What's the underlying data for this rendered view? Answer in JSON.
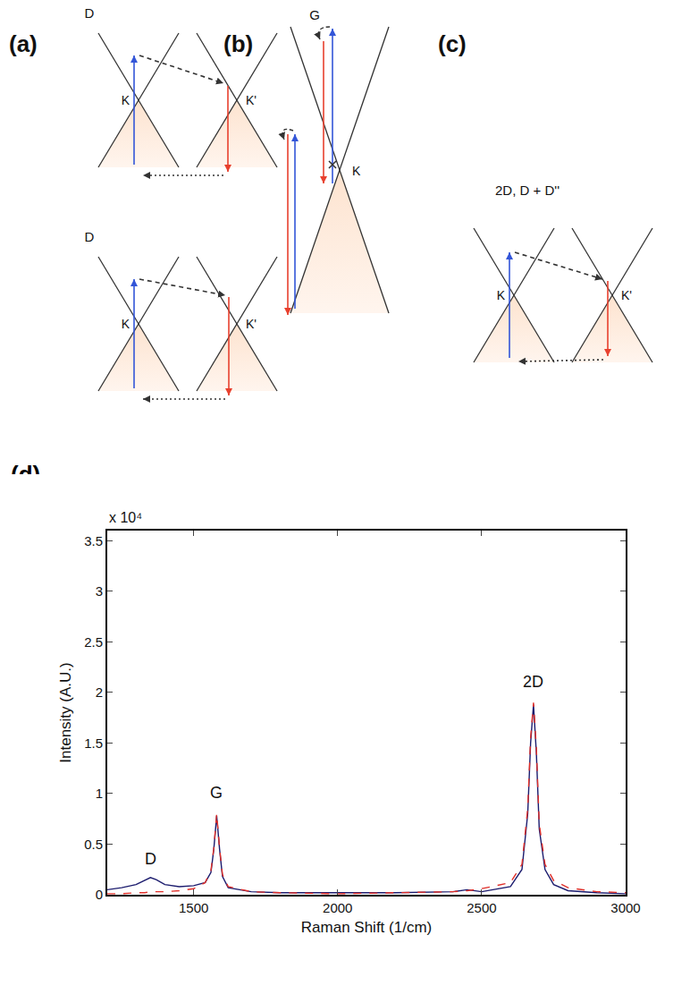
{
  "diagrams": {
    "a": {
      "letter": "(a)",
      "top": {
        "title": "D",
        "valleys": [
          "K",
          "K'"
        ]
      },
      "bottom": {
        "title": "D",
        "valleys": [
          "K",
          "K'"
        ]
      }
    },
    "b": {
      "letter": "(b)",
      "title": "G",
      "valley": "K"
    },
    "c": {
      "letter": "(c)",
      "title": "2D, D + D''",
      "valleys": [
        "K",
        "K'"
      ]
    }
  },
  "chart_letter": "(d)",
  "chart_data": {
    "type": "line",
    "x_label": "Raman Shift (1/cm)",
    "y_label": "Intensity (A.U.)",
    "x": [
      1200,
      1250,
      1300,
      1330,
      1350,
      1370,
      1400,
      1450,
      1500,
      1540,
      1560,
      1570,
      1580,
      1590,
      1600,
      1620,
      1700,
      1800,
      2000,
      2200,
      2400,
      2450,
      2500,
      2600,
      2640,
      2660,
      2670,
      2680,
      2690,
      2700,
      2720,
      2750,
      2800,
      2900,
      3000
    ],
    "series": [
      {
        "color": "#1c1c6e",
        "line_style": "solid",
        "values": [
          0.05,
          0.07,
          0.1,
          0.14,
          0.17,
          0.15,
          0.1,
          0.08,
          0.09,
          0.12,
          0.22,
          0.45,
          0.78,
          0.45,
          0.18,
          0.07,
          0.03,
          0.02,
          0.02,
          0.02,
          0.03,
          0.05,
          0.03,
          0.08,
          0.25,
          0.8,
          1.5,
          1.88,
          1.4,
          0.65,
          0.25,
          0.1,
          0.04,
          0.02,
          0.01
        ]
      },
      {
        "color": "#e0302a",
        "line_style": "dash",
        "values": [
          0.01,
          0.01,
          0.02,
          0.02,
          0.03,
          0.03,
          0.03,
          0.04,
          0.06,
          0.12,
          0.24,
          0.46,
          0.8,
          0.46,
          0.2,
          0.08,
          0.03,
          0.02,
          0.01,
          0.02,
          0.03,
          0.04,
          0.06,
          0.12,
          0.3,
          0.85,
          1.55,
          1.9,
          1.45,
          0.7,
          0.3,
          0.14,
          0.07,
          0.03,
          0.02
        ]
      }
    ],
    "annotations": [
      {
        "text": "D",
        "x": 1350,
        "y": 0.25
      },
      {
        "text": "G",
        "x": 1580,
        "y": 0.9
      },
      {
        "text": "2D",
        "x": 2680,
        "y": 2.0
      },
      {
        "text": "x 10⁴"
      }
    ],
    "xlim": [
      1200,
      3000
    ],
    "xticks": [
      1500,
      2000,
      2500,
      3000
    ],
    "ylim": [
      0,
      3.6
    ],
    "yticks": [
      0,
      0.5,
      1,
      1.5,
      2,
      2.5,
      3,
      3.5
    ],
    "grid": false
  }
}
